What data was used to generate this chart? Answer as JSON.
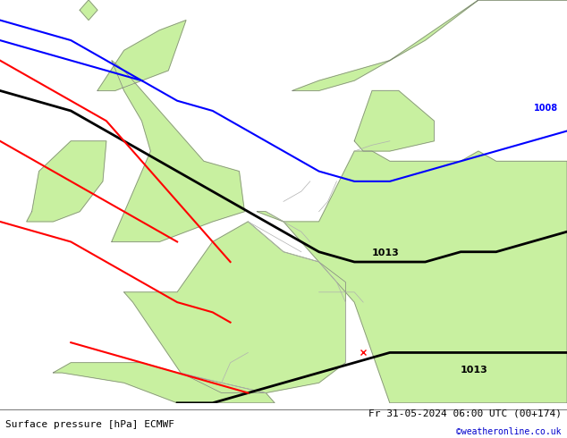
{
  "title_left": "Surface pressure [hPa] ECMWF",
  "title_right": "Fr 31-05-2024 06:00 UTC (00+174)",
  "copyright": "©weatheronline.co.uk",
  "bg_color": "#e8e8e8",
  "land_color": "#c8f0a0",
  "sea_color": "#e0e0e0",
  "border_color": "#b0b0b0",
  "coastline_color": "#808080",
  "isobar_1008_color": "#0000ff",
  "isobar_1013_color": "#000000",
  "isobar_low_color": "#ff0000",
  "label_1008": "1008",
  "label_1013": "1013",
  "figsize": [
    6.34,
    4.9
  ],
  "dpi": 100
}
